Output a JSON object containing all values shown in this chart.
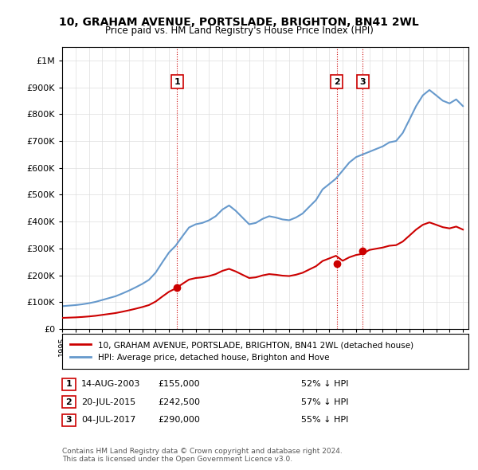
{
  "title": "10, GRAHAM AVENUE, PORTSLADE, BRIGHTON, BN41 2WL",
  "subtitle": "Price paid vs. HM Land Registry's House Price Index (HPI)",
  "ylabel_ticks": [
    "£0",
    "£100K",
    "£200K",
    "£300K",
    "£400K",
    "£500K",
    "£600K",
    "£700K",
    "£800K",
    "£900K",
    "£1M"
  ],
  "ytick_values": [
    0,
    100000,
    200000,
    300000,
    400000,
    500000,
    600000,
    700000,
    800000,
    900000,
    1000000
  ],
  "ylim": [
    0,
    1050000
  ],
  "legend_line1": "10, GRAHAM AVENUE, PORTSLADE, BRIGHTON, BN41 2WL (detached house)",
  "legend_line2": "HPI: Average price, detached house, Brighton and Hove",
  "sale_color": "#cc0000",
  "hpi_color": "#6699cc",
  "vline_color": "#cc0000",
  "table": [
    {
      "num": 1,
      "date": "14-AUG-2003",
      "price": "£155,000",
      "hpi": "52% ↓ HPI"
    },
    {
      "num": 2,
      "date": "20-JUL-2015",
      "price": "£242,500",
      "hpi": "57% ↓ HPI"
    },
    {
      "num": 3,
      "date": "04-JUL-2017",
      "price": "£290,000",
      "hpi": "55% ↓ HPI"
    }
  ],
  "footer": "Contains HM Land Registry data © Crown copyright and database right 2024.\nThis data is licensed under the Open Government Licence v3.0.",
  "sale_dates": [
    "2003-08-14",
    "2015-07-20",
    "2017-07-04"
  ],
  "sale_prices": [
    155000,
    242500,
    290000
  ],
  "background_color": "#ffffff",
  "grid_color": "#dddddd"
}
